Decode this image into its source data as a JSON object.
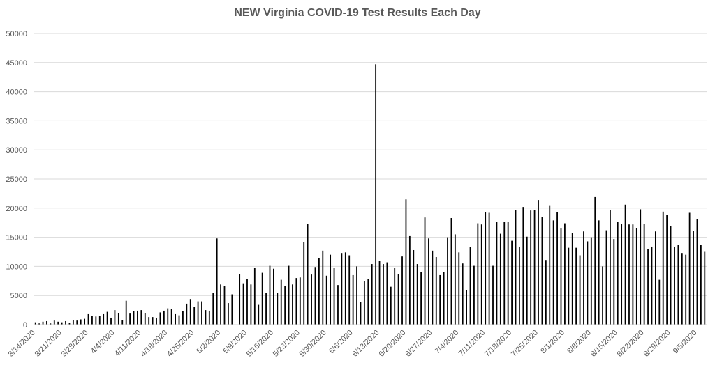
{
  "chart_data": {
    "type": "bar",
    "title": "NEW Virginia COVID-19 Test Results Each Day",
    "ylim": [
      0,
      50000
    ],
    "yticks": [
      "0",
      "5000",
      "10000",
      "15000",
      "20000",
      "25000",
      "30000",
      "35000",
      "40000",
      "45000",
      "50000"
    ],
    "grid": true,
    "legend": "none",
    "bar_color": "#000000",
    "start_date": "3/14/2020",
    "xtick_labels": [
      "3/14/2020",
      "3/21/2020",
      "3/28/2020",
      "4/4/2020",
      "4/11/2020",
      "4/18/2020",
      "4/25/2020",
      "5/2/2020",
      "5/9/2020",
      "5/16/2020",
      "5/23/2020",
      "5/30/2020",
      "6/6/2020",
      "6/13/2020",
      "6/20/2020",
      "6/27/2020",
      "7/4/2020",
      "7/11/2020",
      "7/18/2020",
      "7/25/2020",
      "8/1/2020",
      "8/8/2020",
      "8/15/2020",
      "8/22/2020",
      "8/29/2020",
      "9/5/2020"
    ],
    "values": [
      400,
      200,
      500,
      600,
      200,
      700,
      500,
      400,
      600,
      300,
      800,
      700,
      900,
      1000,
      1800,
      1500,
      1400,
      1500,
      1800,
      2200,
      1200,
      2500,
      2000,
      800,
      4100,
      1900,
      2300,
      2400,
      2500,
      2000,
      1300,
      1300,
      1200,
      2100,
      2400,
      2800,
      2700,
      1800,
      1600,
      2300,
      3600,
      4400,
      3000,
      4000,
      4000,
      2500,
      2400,
      5500,
      14800,
      6900,
      6600,
      3700,
      5200,
      0,
      8700,
      7100,
      7800,
      6900,
      9800,
      3400,
      8900,
      5400,
      10100,
      9600,
      5500,
      7700,
      6700,
      10100,
      6900,
      8000,
      8100,
      14200,
      17300,
      8600,
      9900,
      11400,
      12700,
      8400,
      12000,
      9700,
      6800,
      12300,
      12400,
      11900,
      8500,
      10000,
      3900,
      7500,
      7800,
      10400,
      44700,
      10900,
      10400,
      10700,
      6500,
      9700,
      8700,
      11700,
      21500,
      15200,
      12800,
      10400,
      9000,
      18400,
      14800,
      12700,
      11600,
      8500,
      9000,
      15000,
      18300,
      15500,
      12400,
      10500,
      5900,
      13300,
      10100,
      17400,
      17200,
      19300,
      19200,
      10100,
      17600,
      15600,
      17700,
      17600,
      14400,
      19700,
      13400,
      20200,
      15100,
      19600,
      19700,
      21400,
      18500,
      11100,
      20500,
      17900,
      19300,
      16500,
      17400,
      13200,
      15700,
      13200,
      11900,
      16000,
      14300,
      15000,
      21900,
      17900,
      10000,
      16200,
      19700,
      14700,
      17600,
      17300,
      20600,
      17200,
      17200,
      16600,
      19800,
      17300,
      13000,
      13400,
      16000,
      7700,
      19400,
      18900,
      16900,
      13400,
      13700,
      12300,
      12000,
      19200,
      16100,
      18100,
      13700,
      12500
    ]
  }
}
